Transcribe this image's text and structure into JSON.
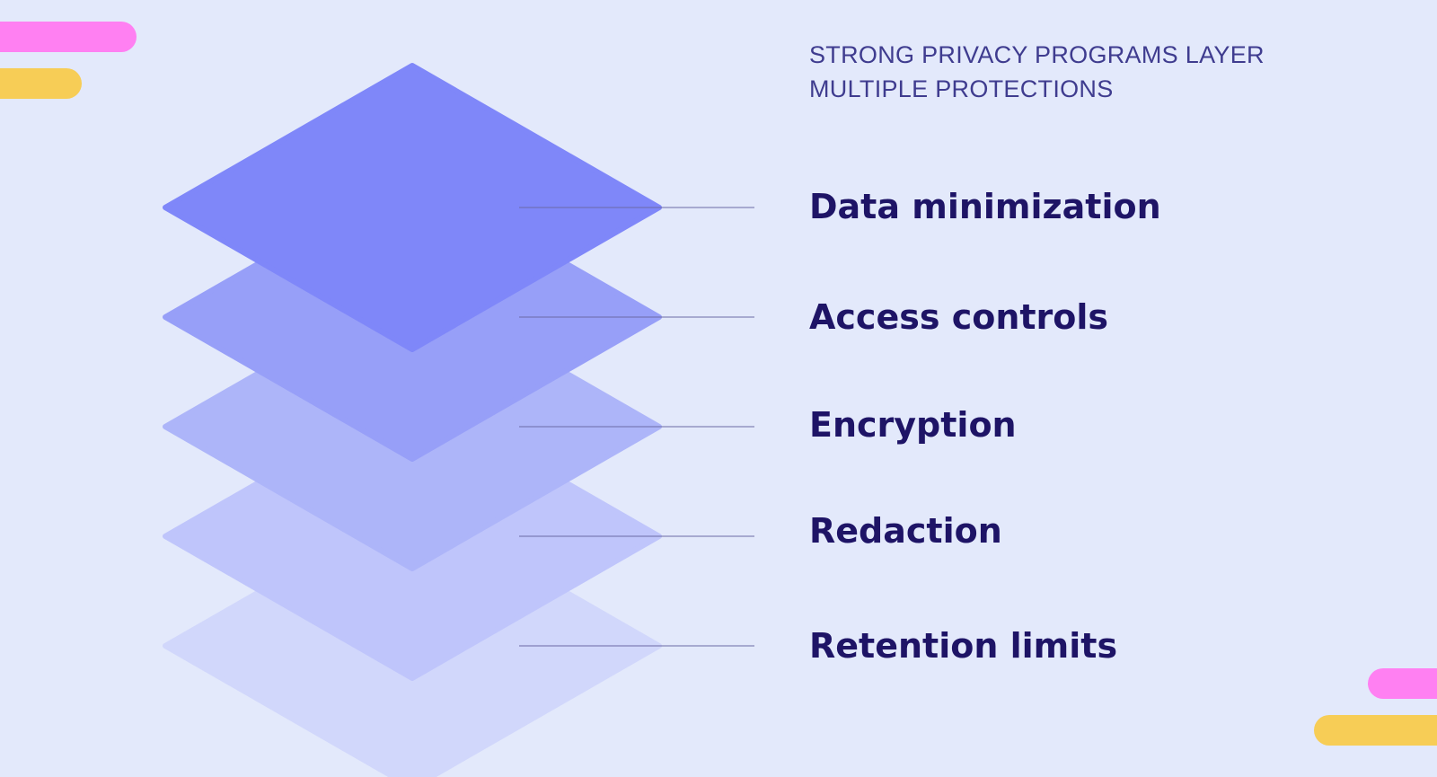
{
  "heading": "STRONG PRIVACY PROGRAMS LAYER MULTIPLE PROTECTIONS",
  "layers": [
    {
      "label": "Data minimization",
      "color": "#7f87f9"
    },
    {
      "label": "Access controls",
      "color": "#979ff8"
    },
    {
      "label": "Encryption",
      "color": "#adb5f9"
    },
    {
      "label": "Redaction",
      "color": "#bfc5fb"
    },
    {
      "label": "Retention limits",
      "color": "#d1d7fb"
    }
  ],
  "colors": {
    "background": "#e3e9fb",
    "accent_pink": "#ff80f2",
    "accent_yellow": "#f7cd56",
    "heading_text": "#3f3c8f",
    "label_text": "#1e1466",
    "connector_line": "#6b6aa6"
  }
}
